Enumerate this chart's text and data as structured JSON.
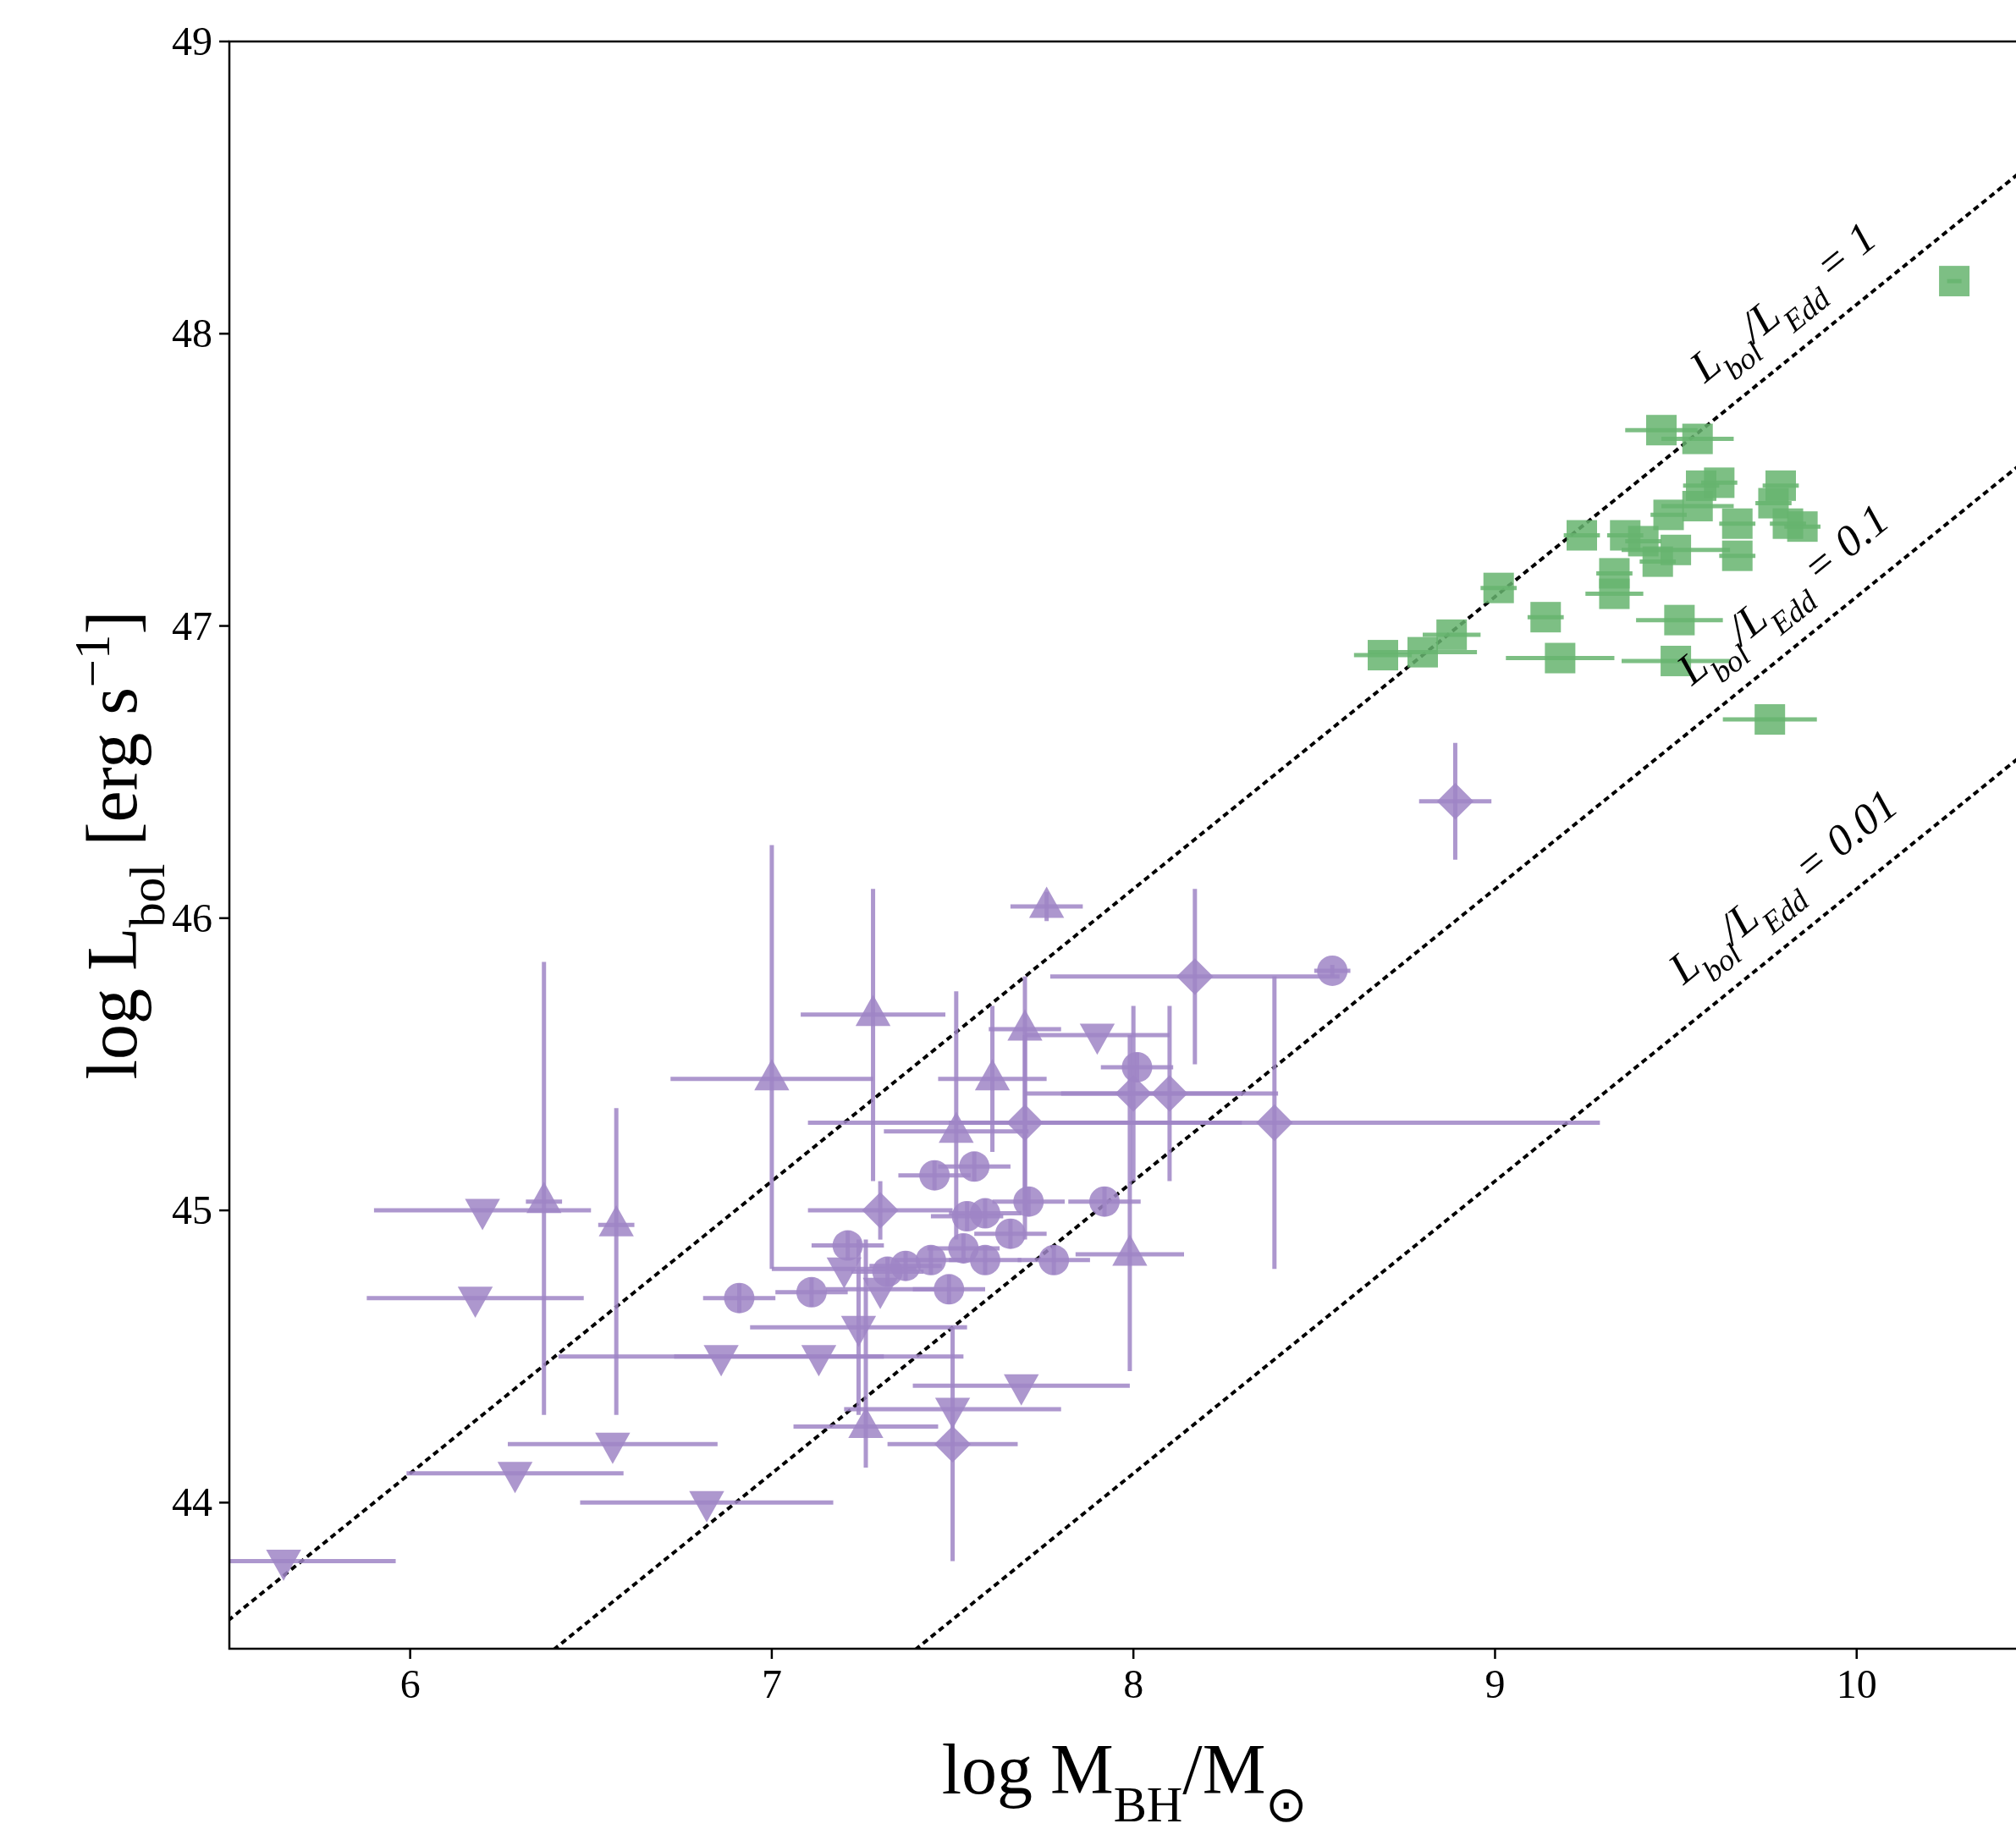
{
  "chart_data": {
    "type": "scatter",
    "xlabel": "log M$_{BH}$/M$_{⊙}$",
    "ylabel": "log L$_{bol}$ [erg s$^{−1}$]",
    "xlim": [
      5.5,
      10.45
    ],
    "ylim": [
      43.5,
      49
    ],
    "xticks": [
      6,
      7,
      8,
      9,
      10
    ],
    "yticks": [
      44,
      45,
      46,
      47,
      48,
      49
    ],
    "annotations": [
      "L$_{bol}$/L$_{Edd}$ = 1",
      "L$_{bol}$/L$_{Edd}$ = 0.1",
      "L$_{bol}$/L$_{Edd}$ = 0.01"
    ],
    "series": [
      {
        "type": "line",
        "color": "#000000",
        "line_style": "dotted",
        "marker": "none",
        "x": [
          5.5,
          10.45
        ],
        "values": [
          43.6,
          48.55
        ]
      },
      {
        "type": "line",
        "color": "#000000",
        "line_style": "dotted",
        "marker": "none",
        "x": [
          6.4,
          10.45
        ],
        "values": [
          43.5,
          47.55
        ]
      },
      {
        "type": "line",
        "color": "#000000",
        "line_style": "dotted",
        "marker": "none",
        "x": [
          7.4,
          10.45
        ],
        "values": [
          43.5,
          46.55
        ]
      },
      {
        "color": "#9f85c5",
        "marker": "triangle-down",
        "x": [
          6.2,
          6.18,
          5.65,
          6.29,
          6.56,
          6.82,
          6.86,
          7.13,
          7.24,
          7.2,
          7.3,
          7.5,
          7.69,
          7.9
        ],
        "values": [
          45.0,
          44.7,
          43.8,
          44.1,
          44.2,
          44.0,
          44.5,
          44.5,
          44.6,
          44.8,
          44.73,
          44.32,
          44.4,
          45.6
        ],
        "xerrors": [
          0.3,
          0.3,
          [
            5.5,
            5.96
          ],
          0.3,
          0.29,
          0.35,
          0.45,
          0.4,
          0.3,
          0.2,
          0.15,
          0.3,
          0.3,
          0.2
        ],
        "errors": [
          null,
          null,
          null,
          null,
          null,
          null,
          null,
          null,
          0.3,
          null,
          null,
          null,
          null,
          null
        ]
      },
      {
        "color": "#9f85c5",
        "marker": "triangle",
        "x": [
          6.37,
          6.57,
          7.0,
          7.28,
          7.51,
          7.61,
          7.7,
          7.76,
          7.99,
          7.26
        ],
        "values": [
          45.03,
          44.95,
          45.45,
          45.67,
          45.27,
          45.45,
          45.62,
          46.04,
          44.85,
          44.26
        ],
        "xerrors": [
          0.05,
          0.05,
          0.28,
          0.2,
          0.2,
          0.15,
          0.1,
          0.1,
          0.15,
          0.2
        ],
        "errors": [
          [
            44.3,
            45.85
          ],
          [
            44.3,
            45.35
          ],
          [
            44.8,
            46.25
          ],
          [
            45.1,
            46.1
          ],
          [
            44.9,
            45.75
          ],
          [
            45.2,
            45.7
          ],
          [
            44.9,
            45.8
          ],
          0.05,
          [
            44.45,
            45.6
          ],
          [
            44.12,
            44.9
          ]
        ]
      },
      {
        "color": "#9f85c5",
        "marker": "diamond",
        "x": [
          7.3,
          7.7,
          8.0,
          8.1,
          8.17,
          8.39,
          8.89,
          7.5
        ],
        "values": [
          45.0,
          45.3,
          45.4,
          45.4,
          45.8,
          45.3,
          46.4,
          44.2
        ],
        "xerrors": [
          0.2,
          0.6,
          0.3,
          0.3,
          0.4,
          0.9,
          0.1,
          0.18
        ],
        "errors": [
          0.1,
          0.3,
          0.3,
          0.3,
          0.3,
          0.5,
          0.2,
          0.4
        ]
      },
      {
        "color": "#9f85c5",
        "marker": "circle",
        "x": [
          6.91,
          7.11,
          7.21,
          7.32,
          7.37,
          7.44,
          7.45,
          7.49,
          7.53,
          7.54,
          7.56,
          7.59,
          7.59,
          7.66,
          7.71,
          7.78,
          7.92,
          8.01,
          8.55
        ],
        "values": [
          44.7,
          44.72,
          44.88,
          44.79,
          44.81,
          44.83,
          45.12,
          44.73,
          44.87,
          44.98,
          45.15,
          44.99,
          44.83,
          44.92,
          45.03,
          44.83,
          45.03,
          45.49,
          45.82
        ],
        "xerrors": [
          0.1,
          0.1,
          0.1,
          0.1,
          0.1,
          0.1,
          0.1,
          0.1,
          0.1,
          0.1,
          0.1,
          0.1,
          0.1,
          0.1,
          0.1,
          0.1,
          0.1,
          0.1,
          0.05
        ],
        "errors": [
          0.05,
          0.05,
          0.05,
          0.05,
          0.05,
          0.05,
          0.05,
          0.05,
          0.05,
          0.05,
          0.05,
          0.05,
          0.05,
          0.05,
          0.05,
          0.05,
          0.05,
          0.05,
          0.02
        ]
      },
      {
        "color": "#66b46e",
        "marker": "square",
        "x": [
          10.27,
          9.46,
          9.56,
          8.69,
          8.8,
          8.88,
          9.01,
          9.14,
          9.18,
          9.24,
          9.33,
          9.33,
          9.36,
          9.41,
          9.45,
          9.48,
          9.5,
          9.51,
          9.5,
          9.56,
          9.57,
          9.62,
          9.67,
          9.67,
          9.76,
          9.77,
          9.79,
          9.81,
          9.85
        ],
        "values": [
          48.18,
          47.67,
          47.64,
          46.9,
          46.91,
          46.97,
          47.13,
          47.03,
          46.89,
          47.31,
          47.18,
          47.11,
          47.31,
          47.29,
          47.22,
          47.38,
          47.26,
          47.02,
          46.88,
          47.41,
          47.48,
          47.49,
          47.35,
          47.24,
          46.68,
          47.42,
          47.48,
          47.35,
          47.34
        ],
        "xerrors": [
          0.02,
          0.1,
          0.1,
          0.08,
          0.15,
          0.08,
          0.05,
          0.05,
          0.15,
          0.05,
          0.05,
          0.08,
          0.05,
          0.05,
          0.05,
          0.05,
          0.15,
          0.12,
          0.15,
          0.1,
          0.05,
          0.05,
          0.05,
          0.05,
          0.13,
          0.05,
          0.05,
          0.05,
          0.05
        ]
      }
    ]
  }
}
